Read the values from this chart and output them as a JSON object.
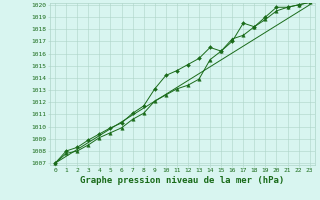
{
  "title": "Graphe pression niveau de la mer (hPa)",
  "x_hours": [
    0,
    1,
    2,
    3,
    4,
    5,
    6,
    7,
    8,
    9,
    10,
    11,
    12,
    13,
    14,
    15,
    16,
    17,
    18,
    19,
    20,
    21,
    22,
    23
  ],
  "line1_y": [
    1007.0,
    1007.8,
    1008.0,
    1008.5,
    1009.1,
    1009.5,
    1009.9,
    1010.6,
    1011.1,
    1012.1,
    1012.6,
    1013.1,
    1013.4,
    1013.9,
    1015.5,
    1016.2,
    1017.2,
    1017.5,
    1018.2,
    1018.8,
    1019.5,
    1019.8,
    1020.0,
    1020.2
  ],
  "line2_y": [
    1007.0,
    1008.0,
    1008.3,
    1008.9,
    1009.4,
    1009.9,
    1010.3,
    1011.1,
    1011.7,
    1013.1,
    1014.2,
    1014.6,
    1015.1,
    1015.6,
    1016.5,
    1016.2,
    1017.0,
    1018.5,
    1018.2,
    1019.0,
    1019.8,
    1019.8,
    1020.0,
    1020.2
  ],
  "ylim_min": 1007,
  "ylim_max": 1020,
  "yticks": [
    1007,
    1008,
    1009,
    1010,
    1011,
    1012,
    1013,
    1014,
    1015,
    1016,
    1017,
    1018,
    1019,
    1020
  ],
  "line_color": "#1a6b1a",
  "bg_color": "#d8f5f0",
  "grid_color": "#aed4c8",
  "tick_label_color": "#1a6b1a",
  "title_color": "#1a6b1a",
  "title_fontsize": 6.5,
  "tick_fontsize": 4.5,
  "lw": 0.7,
  "marker_size1": 2.5,
  "marker_size2": 2.0
}
